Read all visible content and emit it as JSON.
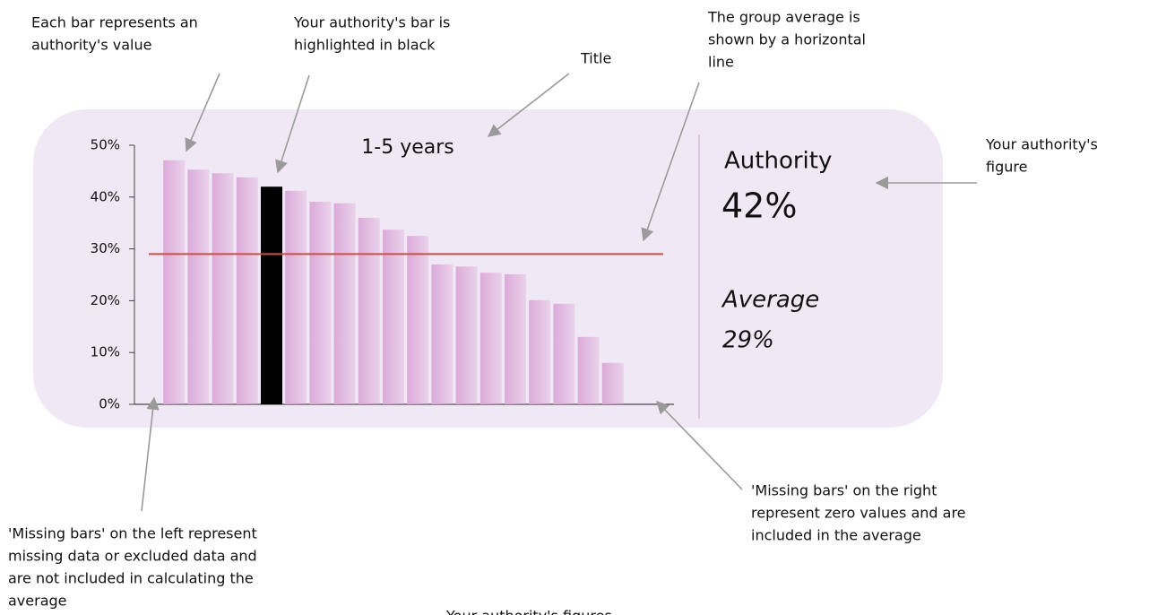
{
  "chart_data": {
    "type": "bar",
    "title": "1-5 years",
    "categories": [
      null,
      null,
      null,
      null,
      null,
      null,
      null,
      null,
      null,
      null,
      null,
      null,
      null,
      null,
      null,
      null,
      null,
      null,
      null,
      null,
      null,
      null
    ],
    "values": [
      null,
      47.1,
      45.3,
      44.6,
      43.8,
      42,
      41.2,
      39.1,
      38.8,
      36.0,
      33.7,
      32.5,
      27.0,
      26.6,
      25.4,
      25.1,
      20.1,
      19.4,
      13.0,
      8.0,
      0,
      0
    ],
    "color": "#dcaad9",
    "highlight_color": "#000000",
    "ylim": [
      0,
      50
    ],
    "yticks": [
      {
        "value": 0,
        "label": "0%"
      },
      {
        "value": 10,
        "label": "10%"
      },
      {
        "value": 20,
        "label": "20%"
      },
      {
        "value": 30,
        "label": "30%"
      },
      {
        "value": 40,
        "label": "40%"
      },
      {
        "value": 50,
        "label": "50%"
      }
    ],
    "average_line_color": "#c8504a",
    "authority": {
      "label": "Authority",
      "value": 42,
      "value_label": "42%"
    },
    "average": {
      "label": "Average",
      "value": 29,
      "value_label": "29%"
    }
  },
  "annotations": {
    "bars": [
      "Each bar represents an",
      "authority's value"
    ],
    "highlight": [
      "Your authority's bar is",
      "highlighted in black"
    ],
    "title": [
      "Title"
    ],
    "average": [
      "The group average is",
      "shown by a horizontal",
      "line"
    ],
    "figure": [
      "Your authority's",
      "figure"
    ],
    "missing_right": [
      "'Missing bars' on the right",
      "represent zero values and are",
      "included in the average"
    ],
    "missing_left": [
      "'Missing bars' on the left represent",
      "missing data or excluded data and",
      "are not included in calculating the",
      "average"
    ],
    "figures": [
      "Your authority's figures"
    ]
  }
}
